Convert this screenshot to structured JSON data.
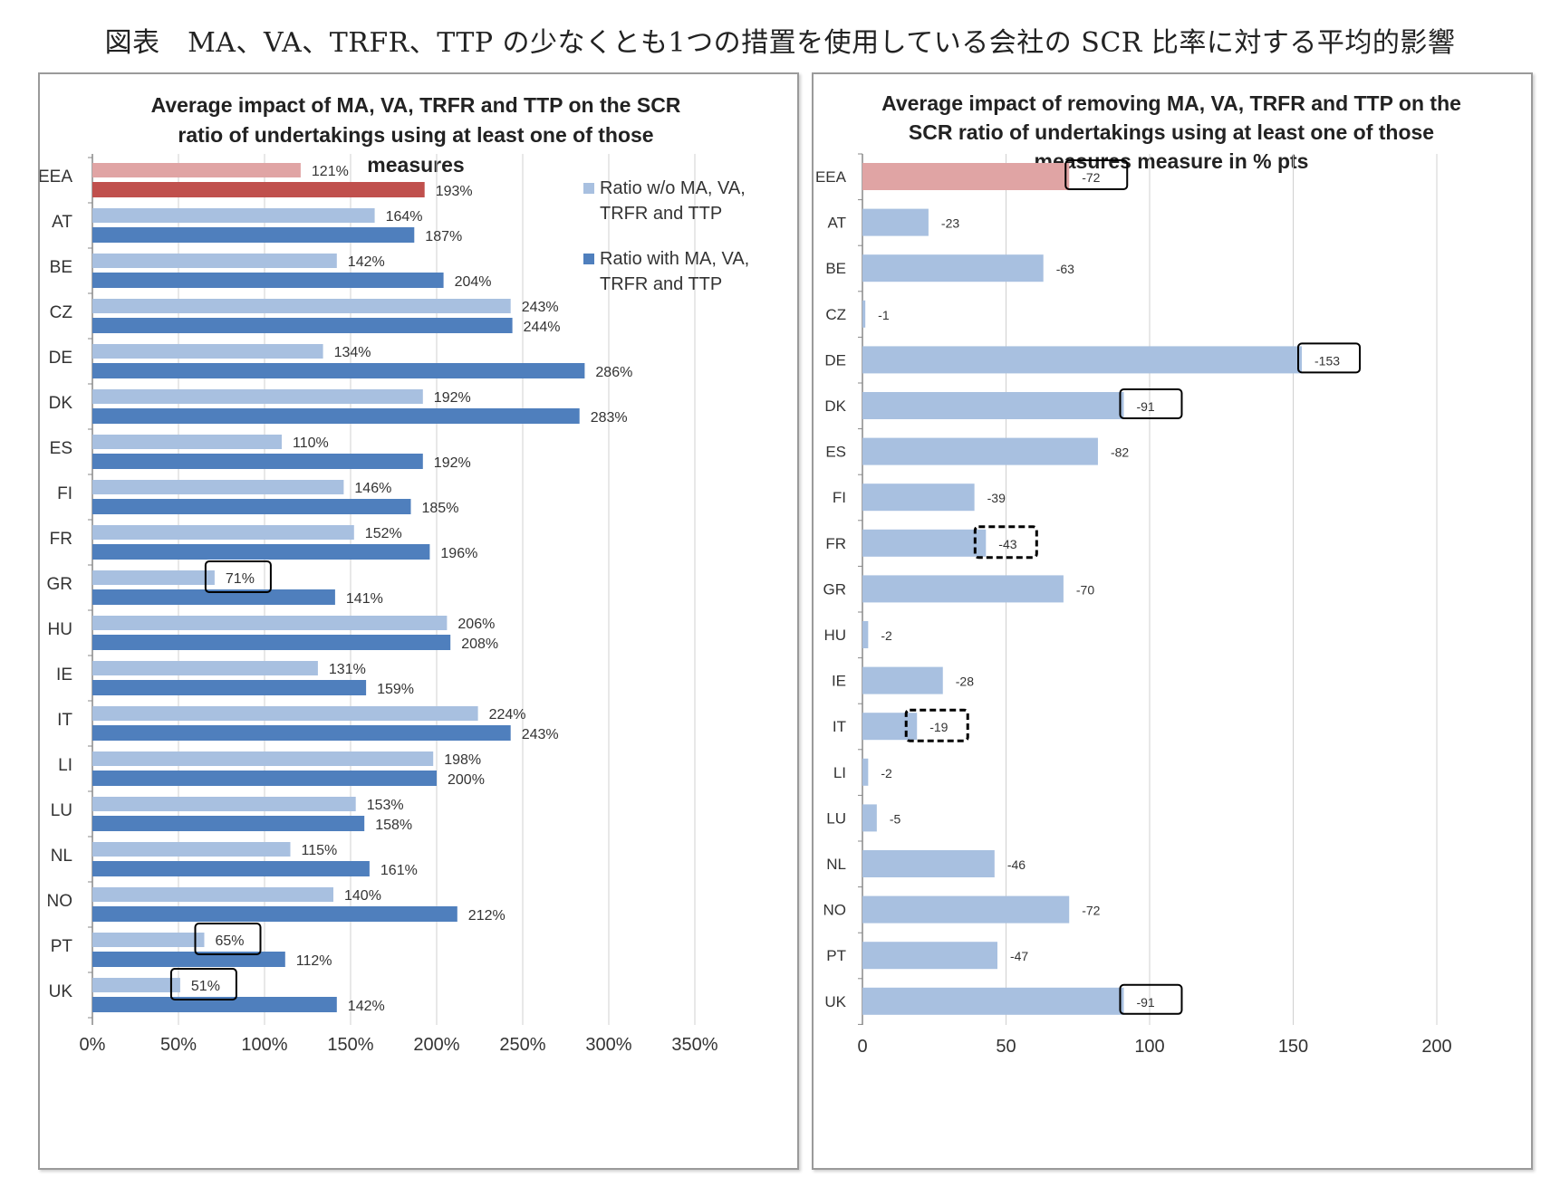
{
  "page_title": "図表　MA、VA、TRFR、TTP の少なくとも1つの措置を使用している会社の SCR 比率に対する平均的影響",
  "colors": {
    "eea_light": "#e0a4a4",
    "eea_dark": "#c0504d",
    "light_blue": "#a8c0e0",
    "dark_blue": "#4f7fbd",
    "grid": "#d0d0d0"
  },
  "chart_data": [
    {
      "type": "bar",
      "orientation": "horizontal",
      "title": "Average impact of MA, VA, TRFR and TTP on the SCR ratio of undertakings using at least one of those measures",
      "categories": [
        "EEA",
        "AT",
        "BE",
        "CZ",
        "DE",
        "DK",
        "ES",
        "FI",
        "FR",
        "GR",
        "HU",
        "IE",
        "IT",
        "LI",
        "LU",
        "NL",
        "NO",
        "PT",
        "UK"
      ],
      "series": [
        {
          "name": "Ratio w/o MA, VA, TRFR and TTP",
          "values": [
            121,
            164,
            142,
            243,
            134,
            192,
            110,
            146,
            152,
            71,
            206,
            131,
            224,
            198,
            153,
            115,
            140,
            65,
            51
          ]
        },
        {
          "name": "Ratio with MA, VA, TRFR and TTP",
          "values": [
            193,
            187,
            204,
            244,
            286,
            283,
            192,
            185,
            196,
            141,
            208,
            159,
            243,
            200,
            158,
            161,
            212,
            112,
            142
          ]
        }
      ],
      "data_labels": [
        [
          "121%",
          "164%",
          "142%",
          "243%",
          "134%",
          "192%",
          "110%",
          "146%",
          "152%",
          "71%",
          "206%",
          "131%",
          "224%",
          "198%",
          "153%",
          "115%",
          "140%",
          "65%",
          "51%"
        ],
        [
          "193%",
          "187%",
          "204%",
          "244%",
          "286%",
          "283%",
          "192%",
          "185%",
          "196%",
          "141%",
          "208%",
          "159%",
          "243%",
          "200%",
          "158%",
          "161%",
          "212%",
          "112%",
          "142%"
        ]
      ],
      "highlighted_w_o": [
        "GR",
        "PT",
        "UK"
      ],
      "xlim": [
        0,
        350
      ],
      "xticks": [
        "0%",
        "50%",
        "100%",
        "150%",
        "200%",
        "250%",
        "300%",
        "350%"
      ],
      "grid": "vertical",
      "legend_position": "top-right"
    },
    {
      "type": "bar",
      "orientation": "horizontal",
      "title": "Average impact of removing MA, VA, TRFR and TTP on the SCR ratio of undertakings using at least one of those measures measure in % pts",
      "categories": [
        "EEA",
        "AT",
        "BE",
        "CZ",
        "DE",
        "DK",
        "ES",
        "FI",
        "FR",
        "GR",
        "HU",
        "IE",
        "IT",
        "LI",
        "LU",
        "NL",
        "NO",
        "PT",
        "UK"
      ],
      "values": [
        -72,
        -23,
        -63,
        -1,
        -153,
        -91,
        -82,
        -39,
        -43,
        -70,
        -2,
        -28,
        -19,
        -2,
        -5,
        -46,
        -72,
        -47,
        -91
      ],
      "data_labels": [
        "-72",
        "-23",
        "-63",
        "-1",
        "-153",
        "-91",
        "-82",
        "-39",
        "-43",
        "-70",
        "-2",
        "-28",
        "-19",
        "-2",
        "-5",
        "-46",
        "-72",
        "-47",
        "-91"
      ],
      "highlighted_solid": [
        "EEA",
        "DE",
        "DK",
        "UK"
      ],
      "highlighted_dashed": [
        "FR",
        "IT"
      ],
      "xlim": [
        0,
        200
      ],
      "xticks": [
        "0",
        "50",
        "100",
        "150",
        "200"
      ],
      "grid": "vertical"
    }
  ]
}
